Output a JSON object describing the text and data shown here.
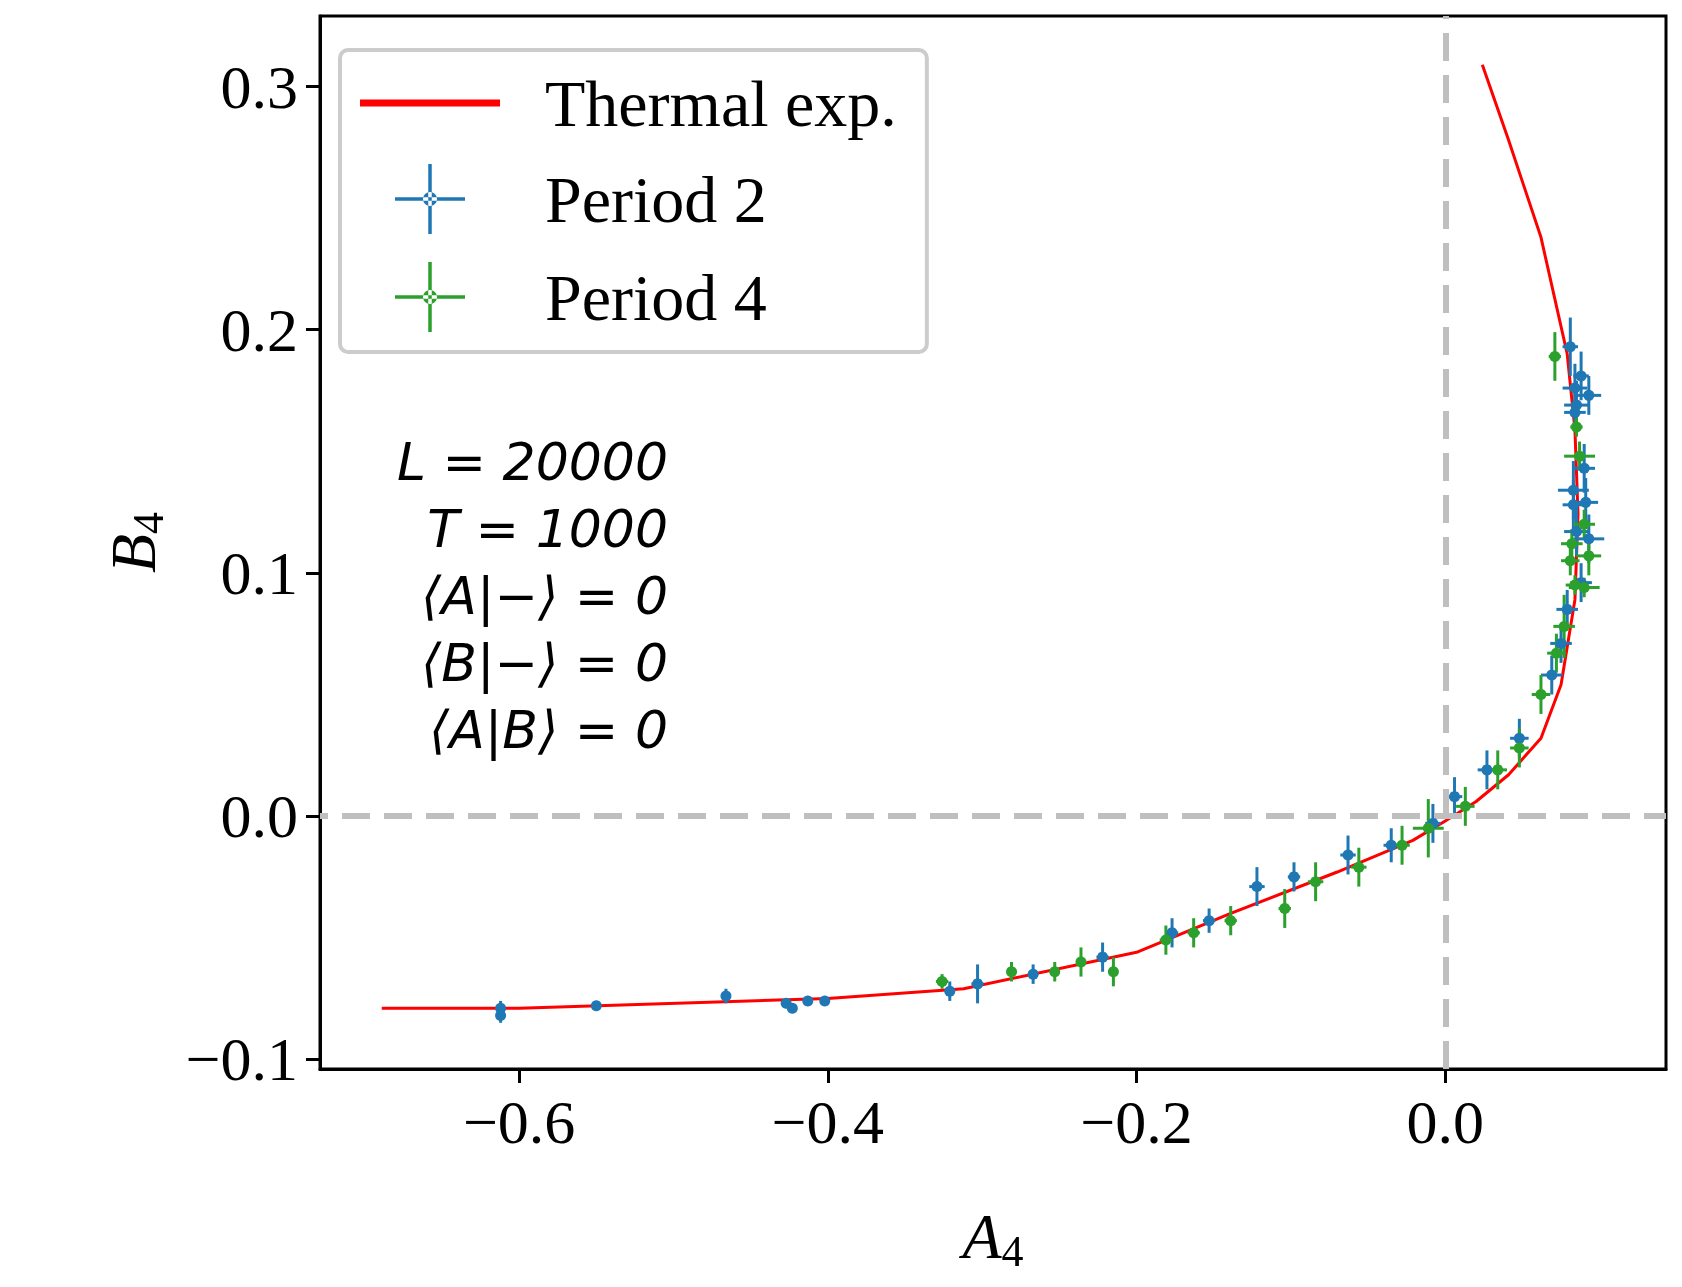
{
  "chart_data": {
    "type": "scatter",
    "xlabel": "A$_{4}$",
    "ylabel": "B$_{4}$",
    "xlim": [
      -0.729,
      0.143
    ],
    "ylim": [
      -0.104,
      0.329
    ],
    "xticks": [
      {
        "value": -0.6,
        "label": "−0.6"
      },
      {
        "value": -0.4,
        "label": "−0.4"
      },
      {
        "value": -0.2,
        "label": "−0.2"
      },
      {
        "value": 0,
        "label": "0.0"
      }
    ],
    "yticks": [
      {
        "value": -0.1,
        "label": "−0.1"
      },
      {
        "value": 0,
        "label": "0.0"
      },
      {
        "value": 0.1,
        "label": "0.1"
      },
      {
        "value": 0.2,
        "label": "0.2"
      },
      {
        "value": 0.3,
        "label": "0.3"
      }
    ],
    "legend": "top left",
    "marker": "circle",
    "ref_lines": [
      {
        "axis": "x",
        "value": 0,
        "color": "#bfbfbf",
        "line_style": "dashed"
      },
      {
        "axis": "y",
        "value": 0,
        "color": "#bfbfbf",
        "line_style": "dashed"
      }
    ],
    "annotations": [
      "L = 20000",
      "T = 1000",
      "⟨A|−⟩ = 0",
      "⟨B|−⟩ = 0",
      "⟨A|B⟩ = 0"
    ],
    "series": [
      {
        "name": "Thermal exp.",
        "type": "line",
        "marker": "none",
        "color": "#ff0000",
        "x": [
          -0.689,
          -0.6,
          -0.4,
          -0.312,
          -0.2,
          -0.139,
          -0.07,
          -0.021,
          0,
          0.02,
          0.041,
          0.062,
          0.075,
          0.084,
          0.086,
          0.084,
          0.079,
          0.062,
          0.041,
          0.024
        ],
        "values": [
          -0.079,
          -0.079,
          -0.075,
          -0.071,
          -0.056,
          -0.04,
          -0.023,
          -0.01,
          -0.002,
          0.006,
          0.017,
          0.032,
          0.054,
          0.089,
          0.124,
          0.159,
          0.19,
          0.238,
          0.278,
          0.309
        ]
      },
      {
        "name": "Period 2",
        "color": "#1f77b4",
        "x": [
          -0.612,
          -0.612,
          -0.55,
          -0.466,
          -0.427,
          -0.423,
          -0.413,
          -0.402,
          -0.321,
          -0.303,
          -0.267,
          -0.222,
          -0.177,
          -0.153,
          -0.122,
          -0.098,
          -0.063,
          -0.035,
          -0.008,
          0.006,
          0.027,
          0.048,
          0.069,
          0.075,
          0.079,
          0.088,
          0.081,
          0.088,
          0.084,
          0.093,
          0.085,
          0.084,
          0.083,
          0.09,
          0.091,
          0.083,
          0.085,
          0.093
        ],
        "values": [
          -0.079,
          -0.082,
          -0.078,
          -0.074,
          -0.077,
          -0.079,
          -0.076,
          -0.076,
          -0.072,
          -0.069,
          -0.065,
          -0.058,
          -0.048,
          -0.043,
          -0.029,
          -0.025,
          -0.016,
          -0.012,
          -0.003,
          0.008,
          0.019,
          0.032,
          0.058,
          0.071,
          0.085,
          0.096,
          0.193,
          0.181,
          0.176,
          0.173,
          0.169,
          0.166,
          0.134,
          0.143,
          0.129,
          0.128,
          0.117,
          0.114
        ],
        "errors": [
          0.003,
          0.003,
          0.002,
          0.003,
          0.002,
          0.002,
          0.002,
          0.002,
          0.004,
          0.008,
          0.004,
          0.006,
          0.006,
          0.005,
          0.008,
          0.006,
          0.008,
          0.007,
          0.008,
          0.008,
          0.008,
          0.008,
          0.008,
          0.008,
          0.008,
          0.008,
          0.012,
          0.01,
          0.01,
          0.008,
          0.01,
          0.008,
          0.012,
          0.01,
          0.01,
          0.01,
          0.01,
          0.01
        ],
        "xerrors": [
          null,
          null,
          null,
          null,
          null,
          null,
          null,
          null,
          0.003,
          0.004,
          0.003,
          0.004,
          0.004,
          0.004,
          0.005,
          0.004,
          0.005,
          0.005,
          0.005,
          0.005,
          0.006,
          0.006,
          0.007,
          0.007,
          0.007,
          0.007,
          0.005,
          0.005,
          0.008,
          0.008,
          0.008,
          0.007,
          0.01,
          0.007,
          0.008,
          0.007,
          0.008,
          0.01
        ]
      },
      {
        "name": "Period 4",
        "color": "#2ca02c",
        "x": [
          -0.326,
          -0.281,
          -0.253,
          -0.236,
          -0.215,
          -0.181,
          -0.163,
          -0.139,
          -0.104,
          -0.084,
          -0.056,
          -0.028,
          -0.011,
          0.013,
          0.034,
          0.048,
          0.062,
          0.072,
          0.077,
          0.071,
          0.085,
          0.087,
          0.09,
          0.082,
          0.081,
          0.093,
          0.084,
          0.09
        ],
        "values": [
          -0.068,
          -0.064,
          -0.064,
          -0.06,
          -0.064,
          -0.051,
          -0.048,
          -0.043,
          -0.038,
          -0.027,
          -0.021,
          -0.012,
          -0.005,
          0.004,
          0.019,
          0.028,
          0.05,
          0.067,
          0.078,
          0.189,
          0.16,
          0.148,
          0.12,
          0.112,
          0.105,
          0.107,
          0.095,
          0.094
        ],
        "errors": [
          0.003,
          0.004,
          0.004,
          0.006,
          0.006,
          0.006,
          0.006,
          0.006,
          0.008,
          0.008,
          0.008,
          0.008,
          0.012,
          0.008,
          0.008,
          0.008,
          0.008,
          0.008,
          0.013,
          0.01,
          0.004,
          0.006,
          0.006,
          0.006,
          0.006,
          0.008,
          0.004,
          0.004
        ],
        "xerrors": [
          0.004,
          0.003,
          0.003,
          0.003,
          0.003,
          0.004,
          0.004,
          0.004,
          0.004,
          0.005,
          0.005,
          0.005,
          0.01,
          0.006,
          0.006,
          0.006,
          0.006,
          0.006,
          0.007,
          0.004,
          0.004,
          0.01,
          0.007,
          0.007,
          0.006,
          0.008,
          0.006,
          0.01
        ]
      }
    ]
  }
}
